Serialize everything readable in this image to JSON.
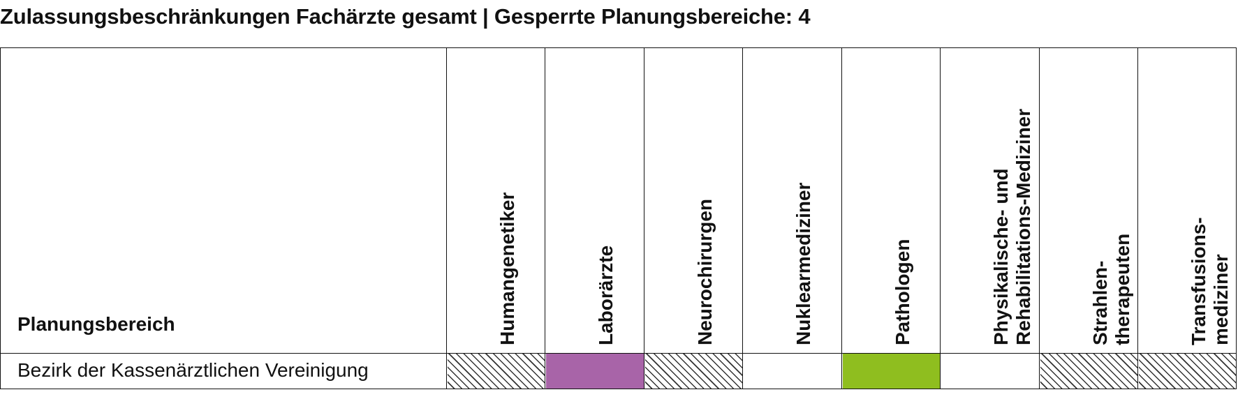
{
  "title": "Zulassungsbeschränkungen Fachärzte gesamt | Gesperrte Planungsbereiche: 4",
  "table": {
    "row_header": "Planungsbereich",
    "columns": [
      {
        "label": "Humangenetiker",
        "status": "hatched"
      },
      {
        "label": "Laborärzte",
        "status": "filled",
        "color": "#a864a8"
      },
      {
        "label": "Neurochirurgen",
        "status": "hatched"
      },
      {
        "label": "Nuklearmediziner",
        "status": "empty"
      },
      {
        "label": "Pathologen",
        "status": "filled",
        "color": "#8fbe1f"
      },
      {
        "label": "Physikalische- und\nRehabilitations-Mediziner",
        "status": "empty"
      },
      {
        "label": "Strahlen-\ntherapeuten",
        "status": "hatched"
      },
      {
        "label": "Transfusions-\nmediziner",
        "status": "hatched"
      }
    ],
    "rows": [
      {
        "label": "Bezirk der Kassenärztlichen Vereinigung"
      }
    ]
  }
}
